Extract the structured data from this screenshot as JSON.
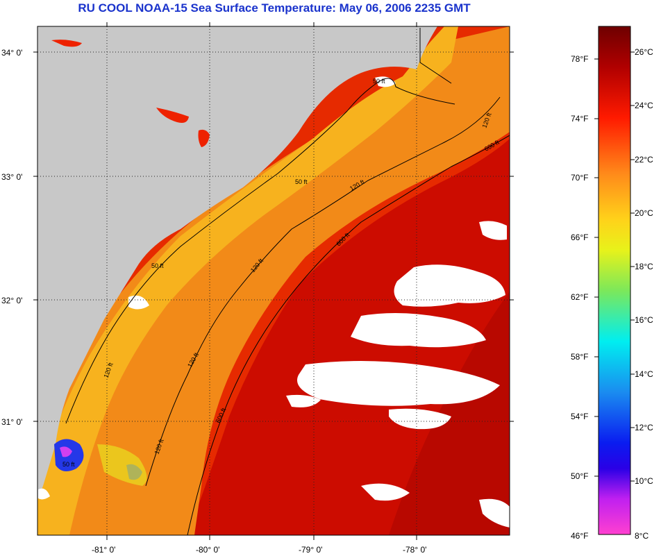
{
  "title": "RU COOL  NOAA-15  Sea Surface Temperature:  May 06, 2006 2235 GMT",
  "lat_labels": [
    "34° 0'",
    "33° 0'",
    "32° 0'",
    "31° 0'"
  ],
  "lon_labels": [
    "-81° 0'",
    "-80° 0'",
    "-79° 0'",
    "-78° 0'"
  ],
  "contour_labels": [
    "50 ft",
    "50 ft",
    "50 ft",
    "50 ft",
    "120 ft",
    "120 ft",
    "120 ft",
    "120 ft",
    "120 ft",
    "120 ft",
    "600 ft",
    "600 ft",
    "600 ft"
  ],
  "colorbar": {
    "fahrenheit": [
      "78°F",
      "74°F",
      "70°F",
      "66°F",
      "62°F",
      "58°F",
      "54°F",
      "50°F",
      "46°F"
    ],
    "celsius": [
      "26°C",
      "24°C",
      "22°C",
      "20°C",
      "18°C",
      "16°C",
      "14°C",
      "12°C",
      "10°C",
      "8°C"
    ]
  },
  "colors": {
    "land": "#c8c8c8",
    "cloud": "#ffffff",
    "title": "#1a33cc",
    "warm_core": "#cc0000",
    "shelf": "#f59a1f",
    "nearshore": "#f8c020"
  }
}
